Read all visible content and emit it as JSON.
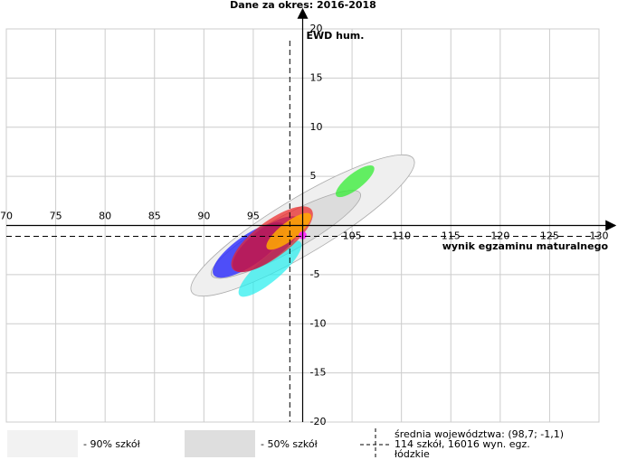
{
  "chart_data": {
    "type": "ellipse",
    "title": "Dane za okres: 2016-2018",
    "y_label": "EWD hum.",
    "x_label": "wynik egzaminu maturalnego",
    "xlim": [
      70,
      130
    ],
    "ylim": [
      -20,
      20
    ],
    "xticks": [
      70,
      75,
      80,
      85,
      90,
      95,
      105,
      110,
      115,
      120,
      125,
      130
    ],
    "yticks": [
      -20,
      -15,
      -10,
      -5,
      5,
      10,
      15,
      20
    ],
    "origin": [
      100,
      0
    ],
    "grid": true,
    "mean": {
      "x": 98.7,
      "y": -1.1
    },
    "ellipses": [
      {
        "x": 100,
        "y": 0,
        "rx": 13.1,
        "ry": 2.8,
        "angle": 31,
        "color": "#efefef",
        "opacity": 1
      },
      {
        "x": 98.3,
        "y": -0.9,
        "rx": 8.6,
        "ry": 1.8,
        "angle": 29,
        "color": "#dcdcdc",
        "opacity": 1
      },
      {
        "x": 105.3,
        "y": 4.5,
        "rx": 2.4,
        "ry": 0.8,
        "angle": 38,
        "color": "#33ee33",
        "opacity": 0.75
      },
      {
        "x": 94.6,
        "y": -2.5,
        "rx": 4.4,
        "ry": 1.5,
        "angle": 35,
        "color": "#2a2aff",
        "opacity": 0.8
      },
      {
        "x": 96.7,
        "y": -4.4,
        "rx": 4.1,
        "ry": 1.2,
        "angle": 41,
        "color": "#22eeee",
        "opacity": 0.7
      },
      {
        "x": 96.9,
        "y": -1.4,
        "rx": 5.0,
        "ry": 1.8,
        "angle": 37,
        "color": "#ee2222",
        "opacity": 0.7
      },
      {
        "x": 96.4,
        "y": -1.9,
        "rx": 4.2,
        "ry": 1.6,
        "angle": 37,
        "color": "#b0105a",
        "opacity": 0.6
      },
      {
        "x": 98.6,
        "y": -0.6,
        "rx": 2.8,
        "ry": 0.9,
        "angle": 38,
        "color": "#ffaa00",
        "opacity": 0.85
      },
      {
        "x": 100,
        "y": -1.0,
        "rx": 0.4,
        "ry": 0.4,
        "angle": 0,
        "color": "#ff22ff",
        "opacity": 0.9
      }
    ],
    "legend": [
      {
        "label": "- 90% szkół",
        "color": "#f2f2f2"
      },
      {
        "label": "- 50% szkół",
        "color": "#dedede"
      }
    ],
    "mean_label": [
      "średnia województwa: (98,7; -1,1)",
      "114 szkół, 16016 wyn. egz.",
      "łódzkie"
    ]
  }
}
